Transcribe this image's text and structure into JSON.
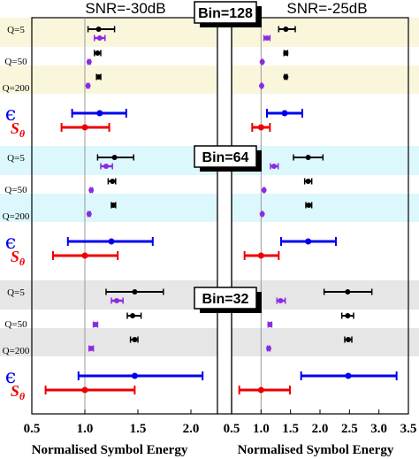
{
  "chart_data": {
    "type": "errorbar-forest",
    "xlabel": "Normalised Symbol Energy",
    "panels": [
      {
        "title": "SNR=-30dB",
        "xlim": [
          0.5,
          2.25
        ],
        "ticks": [
          0.5,
          1.0,
          1.5,
          2.0
        ],
        "tick_labels": [
          "0.5",
          "1.0",
          "1.5",
          "2.0"
        ],
        "reference_line": 1.0,
        "groups": [
          {
            "rows": [
              {
                "label": "Q=5",
                "color": "#000000",
                "value": 1.13,
                "low": 1.03,
                "high": 1.28
              },
              {
                "label": "",
                "color": "#8a2be2",
                "value": 1.14,
                "low": 1.09,
                "high": 1.19
              },
              {
                "label": "Q=50",
                "color": "#000000",
                "value": 1.12,
                "low": 1.09,
                "high": 1.15
              },
              {
                "label": "",
                "color": "#8a2be2",
                "value": 1.04,
                "low": 1.03,
                "high": 1.05
              },
              {
                "label": "Q=200",
                "color": "#000000",
                "value": 1.13,
                "low": 1.11,
                "high": 1.15
              },
              {
                "label": "",
                "color": "#8a2be2",
                "value": 1.03,
                "low": 1.02,
                "high": 1.04
              },
              {
                "label": "ϵ",
                "color": "#0000ee",
                "value": 1.14,
                "low": 0.88,
                "high": 1.39
              },
              {
                "label": "S_θ",
                "color": "#ee0000",
                "value": 1.0,
                "low": 0.78,
                "high": 1.23
              }
            ]
          },
          {
            "rows": [
              {
                "label": "Q=5",
                "color": "#000000",
                "value": 1.28,
                "low": 1.12,
                "high": 1.46
              },
              {
                "label": "",
                "color": "#8a2be2",
                "value": 1.2,
                "low": 1.15,
                "high": 1.26
              },
              {
                "label": "Q=50",
                "color": "#000000",
                "value": 1.26,
                "low": 1.22,
                "high": 1.29
              },
              {
                "label": "",
                "color": "#8a2be2",
                "value": 1.06,
                "low": 1.05,
                "high": 1.07
              },
              {
                "label": "Q=200",
                "color": "#000000",
                "value": 1.27,
                "low": 1.25,
                "high": 1.29
              },
              {
                "label": "",
                "color": "#8a2be2",
                "value": 1.04,
                "low": 1.03,
                "high": 1.05
              },
              {
                "label": "ϵ",
                "color": "#0000ee",
                "value": 1.25,
                "low": 0.84,
                "high": 1.64
              },
              {
                "label": "S_θ",
                "color": "#ee0000",
                "value": 1.0,
                "low": 0.7,
                "high": 1.31
              }
            ]
          },
          {
            "rows": [
              {
                "label": "Q=5",
                "color": "#000000",
                "value": 1.47,
                "low": 1.2,
                "high": 1.74
              },
              {
                "label": "",
                "color": "#8a2be2",
                "value": 1.3,
                "low": 1.25,
                "high": 1.36
              },
              {
                "label": "Q=50",
                "color": "#000000",
                "value": 1.45,
                "low": 1.4,
                "high": 1.53
              },
              {
                "label": "",
                "color": "#8a2be2",
                "value": 1.1,
                "low": 1.08,
                "high": 1.12
              },
              {
                "label": "Q=200",
                "color": "#000000",
                "value": 1.47,
                "low": 1.43,
                "high": 1.5
              },
              {
                "label": "",
                "color": "#8a2be2",
                "value": 1.06,
                "low": 1.04,
                "high": 1.08
              },
              {
                "label": "ϵ",
                "color": "#0000ee",
                "value": 1.47,
                "low": 0.94,
                "high": 2.11
              },
              {
                "label": "S_θ",
                "color": "#ee0000",
                "value": 1.0,
                "low": 0.63,
                "high": 1.47
              }
            ]
          }
        ]
      },
      {
        "title": "SNR=-25dB",
        "xlim": [
          0.5,
          3.5
        ],
        "ticks": [
          0.5,
          1.0,
          1.5,
          2.0,
          2.5,
          3.0,
          3.5
        ],
        "tick_labels": [
          "0.5",
          "1.0",
          "1.5",
          "2.0",
          "2.5",
          "3.0",
          "3.5"
        ],
        "reference_line": 1.0,
        "groups": [
          {
            "rows": [
              {
                "label": "",
                "color": "#000000",
                "value": 1.42,
                "low": 1.3,
                "high": 1.58
              },
              {
                "label": "",
                "color": "#8a2be2",
                "value": 1.1,
                "low": 1.05,
                "high": 1.15
              },
              {
                "label": "",
                "color": "#000000",
                "value": 1.42,
                "low": 1.39,
                "high": 1.45
              },
              {
                "label": "",
                "color": "#8a2be2",
                "value": 1.02,
                "low": 1.01,
                "high": 1.03
              },
              {
                "label": "",
                "color": "#000000",
                "value": 1.42,
                "low": 1.4,
                "high": 1.44
              },
              {
                "label": "",
                "color": "#8a2be2",
                "value": 1.01,
                "low": 1.0,
                "high": 1.02
              },
              {
                "label": "",
                "color": "#0000ee",
                "value": 1.4,
                "low": 1.1,
                "high": 1.7
              },
              {
                "label": "",
                "color": "#ee0000",
                "value": 1.0,
                "low": 0.85,
                "high": 1.15
              }
            ]
          },
          {
            "rows": [
              {
                "label": "",
                "color": "#000000",
                "value": 1.8,
                "low": 1.55,
                "high": 2.05
              },
              {
                "label": "",
                "color": "#8a2be2",
                "value": 1.22,
                "low": 1.16,
                "high": 1.29
              },
              {
                "label": "",
                "color": "#000000",
                "value": 1.8,
                "low": 1.74,
                "high": 1.86
              },
              {
                "label": "",
                "color": "#8a2be2",
                "value": 1.05,
                "low": 1.04,
                "high": 1.06
              },
              {
                "label": "",
                "color": "#000000",
                "value": 1.81,
                "low": 1.76,
                "high": 1.86
              },
              {
                "label": "",
                "color": "#8a2be2",
                "value": 1.02,
                "low": 1.01,
                "high": 1.03
              },
              {
                "label": "",
                "color": "#0000ee",
                "value": 1.8,
                "low": 1.34,
                "high": 2.27
              },
              {
                "label": "",
                "color": "#ee0000",
                "value": 1.0,
                "low": 0.72,
                "high": 1.3
              }
            ]
          },
          {
            "rows": [
              {
                "label": "",
                "color": "#000000",
                "value": 2.47,
                "low": 2.07,
                "high": 2.88
              },
              {
                "label": "",
                "color": "#8a2be2",
                "value": 1.33,
                "low": 1.27,
                "high": 1.41
              },
              {
                "label": "",
                "color": "#000000",
                "value": 2.47,
                "low": 2.37,
                "high": 2.57
              },
              {
                "label": "",
                "color": "#8a2be2",
                "value": 1.15,
                "low": 1.12,
                "high": 1.18
              },
              {
                "label": "",
                "color": "#000000",
                "value": 2.48,
                "low": 2.42,
                "high": 2.54
              },
              {
                "label": "",
                "color": "#8a2be2",
                "value": 1.13,
                "low": 1.11,
                "high": 1.15
              },
              {
                "label": "",
                "color": "#0000ee",
                "value": 2.48,
                "low": 1.68,
                "high": 3.3
              },
              {
                "label": "",
                "color": "#ee0000",
                "value": 1.0,
                "low": 0.63,
                "high": 1.49
              }
            ]
          }
        ]
      }
    ],
    "group_labels": [
      "Bin=128",
      "Bin=64",
      "Bin=32"
    ],
    "band_colors": [
      "#faf6dc",
      "#dcf8fc",
      "#e6e6e6"
    ],
    "row_labels": [
      "Q=5",
      "Q=50",
      "Q=200",
      "ϵ",
      "S_θ"
    ]
  }
}
